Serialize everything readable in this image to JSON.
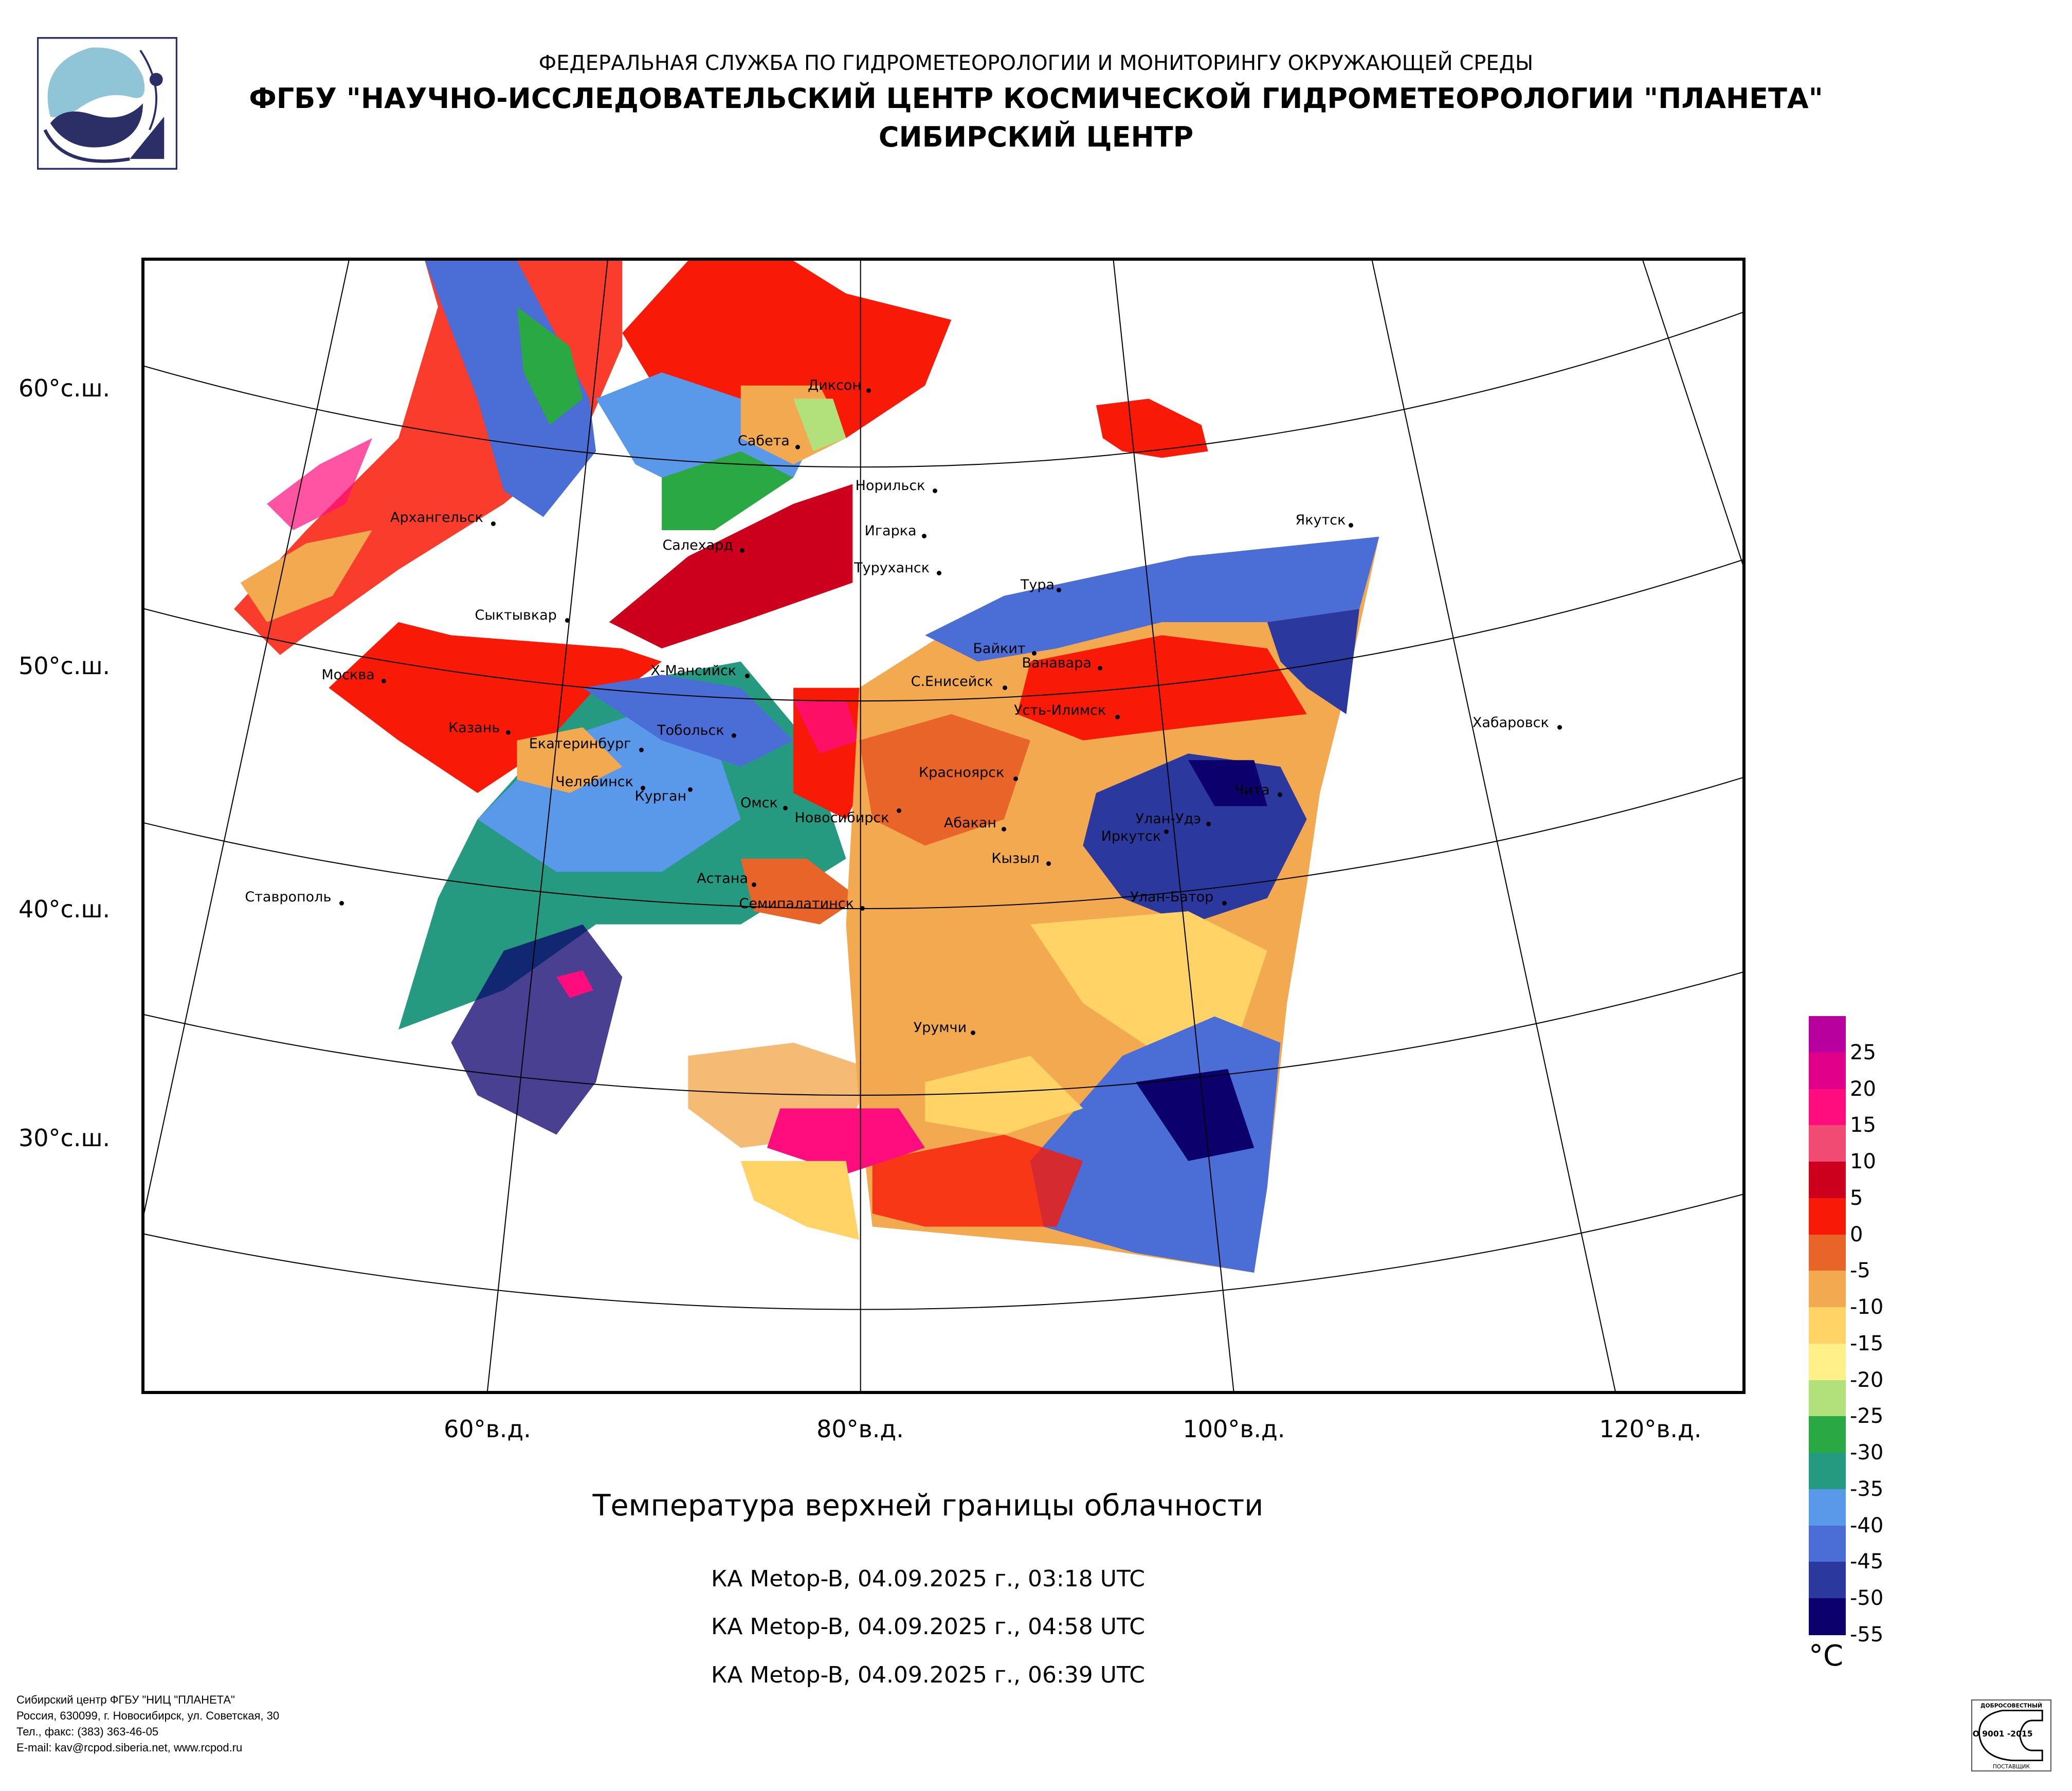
{
  "header": {
    "line1": "ФЕДЕРАЛЬНАЯ СЛУЖБА ПО ГИДРОМЕТЕОРОЛОГИИ И МОНИТОРИНГУ ОКРУЖАЮЩЕЙ СРЕДЫ",
    "line2": "ФГБУ \"НАУЧНО-ИССЛЕДОВАТЕЛЬСКИЙ ЦЕНТР КОСМИЧЕСКОЙ ГИДРОМЕТЕОРОЛОГИИ \"ПЛАНЕТА\"",
    "line3": "СИБИРСКИЙ ЦЕНТР"
  },
  "chart_data": {
    "type": "heatmap",
    "title": "Температура верхней границы облачности",
    "subtitles": [
      "КА Metop-B, 04.09.2025 г., 03:18 UTC",
      "КА Metop-B, 04.09.2025 г., 04:58 UTC",
      "КА Metop-B, 04.09.2025 г., 06:39 UTC"
    ],
    "lat_labels": [
      "60°с.ш.",
      "50°с.ш.",
      "40°с.ш.",
      "30°с.ш."
    ],
    "lon_labels": [
      "60°в.д.",
      "80°в.д.",
      "100°в.д.",
      "120°в.д."
    ],
    "colorbar": {
      "unit": "°C",
      "labels": [
        "25",
        "20",
        "15",
        "10",
        "5",
        "0",
        "-5",
        "-10",
        "-15",
        "-20",
        "-25",
        "-30",
        "-35",
        "-40",
        "-45",
        "-50",
        "-55"
      ],
      "colors": [
        "#b8009f",
        "#e0008a",
        "#ff0c7e",
        "#f24b73",
        "#cc001c",
        "#f81a06",
        "#e86428",
        "#f2a950",
        "#ffd366",
        "#fff08a",
        "#b2e07a",
        "#2aa843",
        "#259a80",
        "#5a98ea",
        "#4a6dd6",
        "#2b389e",
        "#0c006c"
      ]
    },
    "cities": [
      "Диксон",
      "Сабета",
      "Норильск",
      "Игарка",
      "Туруханск",
      "Архангельск",
      "Салехард",
      "Якутск",
      "Тура",
      "Сыктывкар",
      "Байкит",
      "Ванавара",
      "Москва",
      "Х-Мансийск",
      "С.Енисейск",
      "Усть-Илимск",
      "Хабаровск",
      "Казань",
      "Тобольск",
      "Екатеринбург",
      "Красноярск",
      "Чита",
      "Челябинск",
      "Курган",
      "Омск",
      "Новосибирск",
      "Абакан",
      "Улан-Удэ",
      "Иркутск",
      "Кызыл",
      "Астана",
      "Семипалатинск",
      "Улан-Батор",
      "Ставрополь",
      "Урумчи"
    ]
  },
  "footer": {
    "line1": "Сибирский центр ФГБУ \"НИЦ \"ПЛАНЕТА\"",
    "line2": "Россия, 630099, г. Новосибирск, ул. Советская, 30",
    "line3": "Тел., факс: (383) 363-46-05",
    "line4": "E-mail: kav@rcpod.siberia.net, www.rcpod.ru"
  },
  "iso_badge": {
    "top": "ДОБРОСОВЕСТНЫЙ",
    "center": "ИСО 9001 -2015",
    "bottom": "ПОСТАВЩИК"
  }
}
